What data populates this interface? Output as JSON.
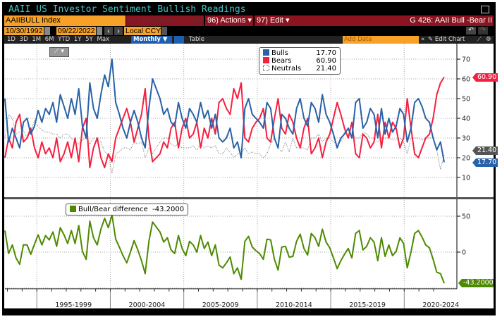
{
  "header": {
    "title": "AAII US Investor Sentiment Bullish Readings",
    "security": "AAIIBULL Index",
    "suggested": "94) Suggested Charts",
    "actions": "96) Actions ▾",
    "edit": "97) Edit ▾",
    "chart_id": "G 426: AAII Bull -Bear II"
  },
  "dates": {
    "start": "10/30/1992",
    "end": "09/22/2022",
    "currency": "Local CCY"
  },
  "periods": [
    "1D",
    "3D",
    "1M",
    "6M",
    "YTD",
    "1Y",
    "5Y",
    "Max"
  ],
  "frequency": "Monthly ▼",
  "table_label": "Table",
  "add_data": "Add Data",
  "edit_chart": "Edit Chart",
  "colors": {
    "bulls": "#2862a8",
    "bears": "#f5203f",
    "neutrals": "#777777",
    "diff": "#4e8a00"
  },
  "chart_data": [
    {
      "type": "line",
      "title": "AAII US Investor Sentiment Bullish Readings",
      "ylim": [
        0,
        77
      ],
      "yticks": [
        10,
        20,
        30,
        40,
        50,
        60,
        70
      ],
      "x_start": 1992.83,
      "x_end": 2022.72,
      "legend": [
        {
          "name": "Bulls",
          "last": "17.70"
        },
        {
          "name": "Bears",
          "last": "60.90"
        },
        {
          "name": "Neutrals",
          "last": "21.40"
        }
      ],
      "flags": {
        "bulls": "17.70",
        "bears": "60.90",
        "neutrals": "21.40"
      },
      "series": [
        {
          "name": "Bulls",
          "values": [
            50,
            28,
            35,
            30,
            25,
            38,
            40,
            32,
            36,
            44,
            38,
            45,
            42,
            48,
            38,
            52,
            46,
            40,
            50,
            42,
            55,
            36,
            30,
            58,
            45,
            40,
            52,
            62,
            56,
            70,
            48,
            42,
            35,
            30,
            38,
            44,
            38,
            30,
            25,
            45,
            60,
            55,
            50,
            42,
            45,
            38,
            36,
            48,
            40,
            35,
            45,
            42,
            38,
            48,
            40,
            44,
            35,
            42,
            30,
            28,
            30,
            35,
            25,
            28,
            20,
            45,
            50,
            42,
            40,
            38,
            35,
            48,
            45,
            30,
            25,
            42,
            40,
            35,
            32,
            45,
            50,
            40,
            36,
            48,
            45,
            38,
            52,
            42,
            38,
            32,
            25,
            30,
            32,
            35,
            30,
            48,
            50,
            35,
            38,
            45,
            42,
            30,
            45,
            32,
            40,
            33,
            36,
            45,
            42,
            28,
            35,
            48,
            50,
            46,
            40,
            38,
            30,
            24,
            28,
            17.7
          ]
        },
        {
          "name": "Bears",
          "values": [
            20,
            30,
            25,
            38,
            42,
            28,
            30,
            35,
            25,
            20,
            28,
            22,
            25,
            20,
            30,
            18,
            22,
            28,
            20,
            30,
            18,
            35,
            40,
            15,
            25,
            30,
            20,
            15,
            22,
            18,
            30,
            35,
            40,
            45,
            38,
            28,
            35,
            42,
            55,
            30,
            18,
            20,
            22,
            28,
            25,
            35,
            38,
            25,
            35,
            40,
            30,
            32,
            38,
            25,
            35,
            30,
            40,
            32,
            48,
            50,
            45,
            42,
            55,
            50,
            58,
            30,
            28,
            35,
            38,
            40,
            45,
            30,
            28,
            40,
            50,
            35,
            32,
            42,
            38,
            30,
            25,
            35,
            40,
            22,
            25,
            30,
            20,
            28,
            32,
            40,
            48,
            42,
            35,
            30,
            38,
            22,
            20,
            32,
            30,
            25,
            28,
            42,
            25,
            38,
            30,
            38,
            35,
            25,
            30,
            50,
            35,
            22,
            20,
            25,
            30,
            32,
            40,
            52,
            58,
            60.9
          ]
        },
        {
          "name": "Neutrals",
          "derived": "100 - Bulls - Bears"
        }
      ]
    },
    {
      "type": "line",
      "legend": [
        {
          "name": "Bull/Bear difference",
          "last": "-43.2000"
        }
      ],
      "ylim": [
        -50,
        70
      ],
      "yticks": [
        0,
        50
      ],
      "flag": "-43.2000",
      "series": [
        {
          "name": "Bull/Bear difference",
          "derived": "Bulls - Bears"
        }
      ],
      "x_tick_labels": [
        "1995-1999",
        "2000-2004",
        "2005-2009",
        "2010-2014",
        "2015-2019",
        "2020-2024"
      ]
    }
  ]
}
